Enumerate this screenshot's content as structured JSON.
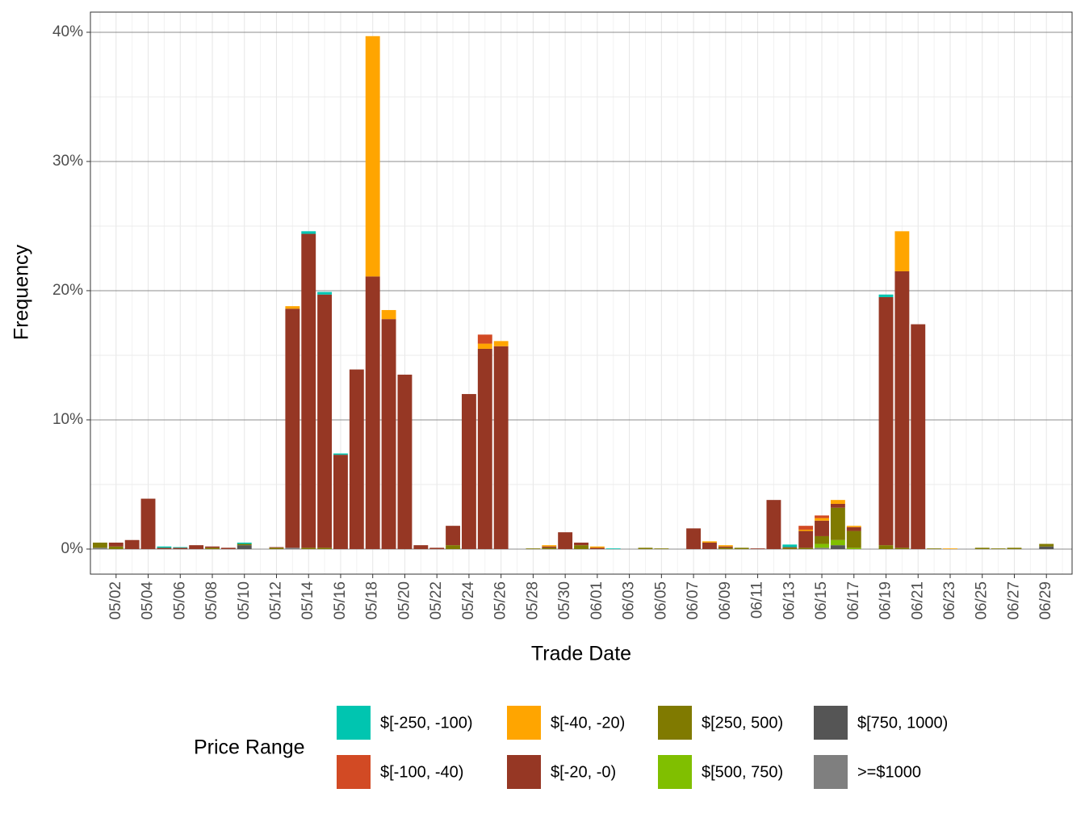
{
  "chart_data": {
    "type": "stacked_bar",
    "x_label": "Trade Date",
    "y_label": "Frequency",
    "legend_title": "Price Range",
    "categories": [
      null,
      "05/02",
      null,
      "05/04",
      null,
      "05/06",
      null,
      "05/08",
      null,
      "05/10",
      null,
      "05/12",
      null,
      "05/14",
      null,
      "05/16",
      null,
      "05/18",
      null,
      "05/20",
      null,
      "05/22",
      null,
      "05/24",
      null,
      "05/26",
      null,
      "05/28",
      null,
      "05/30",
      null,
      "06/01",
      null,
      "06/03",
      null,
      "06/05",
      null,
      "06/07",
      null,
      "06/09",
      null,
      "06/11",
      null,
      "06/13",
      null,
      "06/15",
      null,
      "06/17",
      null,
      "06/19",
      null,
      "06/21",
      null,
      "06/23",
      null,
      "06/25",
      null,
      "06/27",
      null,
      "06/29",
      null
    ],
    "ylim": [
      -1.94,
      41.56
    ],
    "yticks": [
      {
        "value": 0,
        "label": "0%"
      },
      {
        "value": 10,
        "label": "10%"
      },
      {
        "value": 20,
        "label": "20%"
      },
      {
        "value": 30,
        "label": "30%"
      },
      {
        "value": 40,
        "label": "40%"
      }
    ],
    "y_minor_ticks": [
      5,
      15,
      25,
      35
    ],
    "grid": true,
    "series": [
      {
        "name": "$[-250, -100)",
        "color": "#00c5b0",
        "values": [
          0,
          0,
          0,
          0,
          0.1,
          0.05,
          0,
          0,
          0,
          0.1,
          0,
          0,
          0,
          0.2,
          0.2,
          0.1,
          0,
          0,
          0,
          0,
          0,
          0,
          0,
          0,
          0,
          0,
          0,
          0,
          0,
          0,
          0,
          0,
          0.05,
          0,
          0,
          0,
          0,
          0,
          0,
          0,
          0,
          0,
          0,
          0.2,
          0,
          0,
          0,
          0,
          0,
          0.2,
          0,
          0,
          0,
          0,
          0,
          0,
          0,
          0,
          0,
          0,
          0
        ]
      },
      {
        "name": "$[-100, -40)",
        "color": "#d24a24",
        "values": [
          0,
          0,
          0,
          0,
          0,
          0,
          0,
          0,
          0,
          0,
          0,
          0,
          0,
          0,
          0,
          0,
          0,
          0,
          0,
          0,
          0,
          0,
          0,
          0,
          0.7,
          0,
          0,
          0,
          0,
          0,
          0,
          0,
          0,
          0,
          0,
          0,
          0,
          0,
          0,
          0,
          0,
          0,
          0,
          0,
          0.3,
          0.2,
          0,
          0,
          0,
          0,
          0,
          0,
          0,
          0,
          0,
          0,
          0,
          0,
          0,
          0,
          0
        ]
      },
      {
        "name": "$[-40, -20)",
        "color": "#ffa500",
        "values": [
          0,
          0,
          0,
          0,
          0,
          0,
          0,
          0,
          0,
          0,
          0,
          0,
          0.2,
          0,
          0,
          0,
          0,
          18.6,
          0.7,
          0,
          0,
          0,
          0,
          0,
          0.4,
          0.4,
          0,
          0,
          0.1,
          0,
          0,
          0.1,
          0,
          0,
          0,
          0,
          0,
          0,
          0.1,
          0.1,
          0,
          0,
          0,
          0,
          0.1,
          0.2,
          0.3,
          0.1,
          0,
          0,
          3.1,
          0,
          0,
          0.05,
          0,
          0,
          0,
          0,
          0,
          0,
          0
        ]
      },
      {
        "name": "$[-20, -0)",
        "color": "#963724",
        "values": [
          0,
          0.3,
          0.7,
          3.9,
          0.1,
          0.1,
          0.3,
          0.1,
          0.1,
          0,
          0,
          0.05,
          18.5,
          24.3,
          19.6,
          7.3,
          13.9,
          21.1,
          17.8,
          13.5,
          0.3,
          0.1,
          1.5,
          12.0,
          15.5,
          15.7,
          0,
          0,
          0.1,
          1.3,
          0.2,
          0.1,
          0,
          0,
          0,
          0,
          0,
          1.6,
          0.5,
          0.1,
          0,
          0.05,
          3.8,
          0.05,
          1.3,
          1.2,
          0.3,
          0.3,
          0,
          19.2,
          21.4,
          17.4,
          0,
          0,
          0,
          0,
          0,
          0,
          0,
          0,
          0
        ]
      },
      {
        "name": "$[250, 500)",
        "color": "#807a00",
        "values": [
          0.4,
          0.2,
          0,
          0,
          0,
          0,
          0,
          0.1,
          0,
          0.1,
          0,
          0.1,
          0,
          0.1,
          0.1,
          0,
          0,
          0,
          0,
          0,
          0,
          0,
          0.3,
          0,
          0,
          0,
          0,
          0.05,
          0.1,
          0,
          0.3,
          0,
          0,
          0,
          0.1,
          0.05,
          0,
          0,
          0,
          0.1,
          0.1,
          0,
          0,
          0.1,
          0.1,
          0.6,
          2.5,
          1.3,
          0,
          0.3,
          0.1,
          0,
          0.05,
          0,
          0,
          0.1,
          0.05,
          0.1,
          0,
          0.2,
          0
        ]
      },
      {
        "name": "$[500, 750)",
        "color": "#80bf00",
        "values": [
          0,
          0,
          0,
          0,
          0,
          0,
          0,
          0,
          0,
          0,
          0,
          0,
          0,
          0,
          0,
          0,
          0,
          0,
          0,
          0,
          0,
          0,
          0,
          0,
          0,
          0,
          0,
          0,
          0,
          0,
          0,
          0,
          0,
          0,
          0,
          0,
          0,
          0,
          0,
          0,
          0,
          0,
          0,
          0,
          0,
          0.3,
          0.4,
          0.1,
          0,
          0,
          0,
          0,
          0,
          0,
          0,
          0,
          0,
          0,
          0,
          0,
          0
        ]
      },
      {
        "name": "$[750, 1000)",
        "color": "#555555",
        "values": [
          0,
          0,
          0,
          0,
          0,
          0,
          0,
          0,
          0,
          0.3,
          0,
          0,
          0,
          0,
          0,
          0,
          0,
          0,
          0,
          0,
          0,
          0,
          0,
          0,
          0,
          0,
          0,
          0,
          0,
          0,
          0,
          0,
          0,
          0,
          0,
          0,
          0,
          0,
          0,
          0,
          0,
          0,
          0,
          0,
          0,
          0,
          0.3,
          0,
          0,
          0,
          0,
          0,
          0,
          0,
          0,
          0,
          0,
          0,
          0,
          0.2,
          0
        ]
      },
      {
        "name": ">=$1000",
        "color": "#7f7f7f",
        "values": [
          0.1,
          0,
          0,
          0,
          0,
          0,
          0,
          0,
          0,
          0,
          0,
          0,
          0.1,
          0,
          0,
          0,
          0,
          0,
          0,
          0,
          0,
          0,
          0,
          0,
          0,
          0,
          0,
          0,
          0,
          0,
          0,
          0,
          0,
          0,
          0,
          0,
          0,
          0,
          0,
          0,
          0,
          0,
          0,
          0,
          0,
          0.1,
          0,
          0,
          0,
          0,
          0,
          0,
          0,
          0,
          0,
          0,
          0,
          0,
          0,
          0,
          0
        ]
      }
    ]
  }
}
